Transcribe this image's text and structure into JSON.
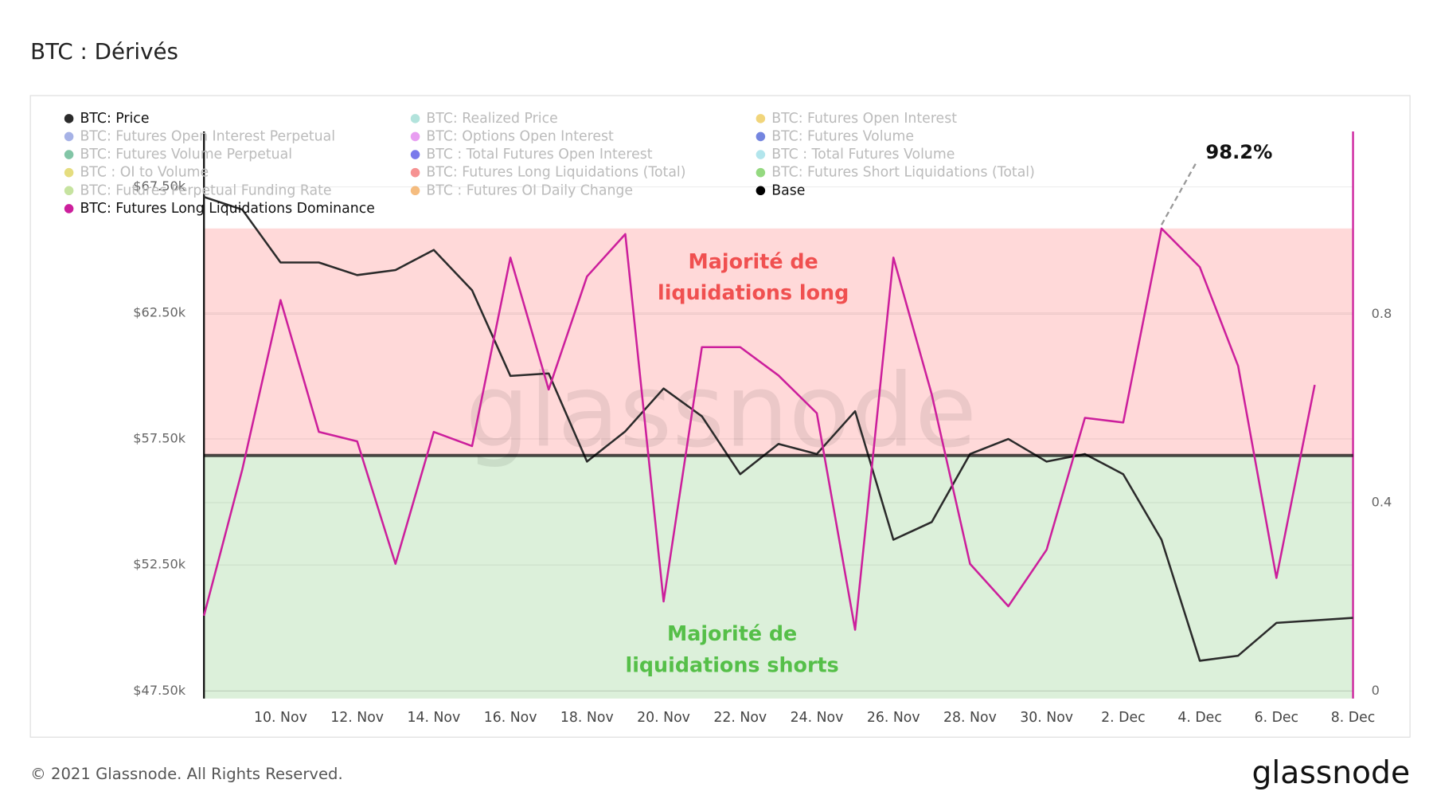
{
  "chart_data": {
    "type": "line",
    "title": "BTC : Dérivés",
    "watermark": "glassnode",
    "x": [
      "8. Nov",
      "9. Nov",
      "10. Nov",
      "11. Nov",
      "12. Nov",
      "13. Nov",
      "14. Nov",
      "15. Nov",
      "16. Nov",
      "17. Nov",
      "18. Nov",
      "19. Nov",
      "20. Nov",
      "21. Nov",
      "22. Nov",
      "23. Nov",
      "24. Nov",
      "25. Nov",
      "26. Nov",
      "27. Nov",
      "28. Nov",
      "29. Nov",
      "30. Nov",
      "1. Dec",
      "2. Dec",
      "3. Dec",
      "4. Dec",
      "5. Dec",
      "6. Dec",
      "7. Dec",
      "8. Dec"
    ],
    "xlim": [
      "8. Nov",
      "8. Dec"
    ],
    "xticks": [
      "10. Nov",
      "12. Nov",
      "14. Nov",
      "16. Nov",
      "18. Nov",
      "20. Nov",
      "22. Nov",
      "24. Nov",
      "26. Nov",
      "28. Nov",
      "30. Nov",
      "2. Dec",
      "4. Dec",
      "6. Dec",
      "8. Dec"
    ],
    "ylim": [
      47200,
      69700
    ],
    "yticks": [
      {
        "value": 47500,
        "label": "$47.50k"
      },
      {
        "value": 52500,
        "label": "$52.50k"
      },
      {
        "value": 57500,
        "label": "$57.50k"
      },
      {
        "value": 62500,
        "label": "$62.50k"
      },
      {
        "value": 67500,
        "label": "$67.50k"
      }
    ],
    "y2lim": [
      -0.016,
      1.188
    ],
    "y2ticks": [
      0,
      0.4,
      0.8
    ],
    "grid": true,
    "series": [
      {
        "name": "BTC: Price",
        "color": "#2b2b2b",
        "visible": true,
        "values": [
          67100,
          66600,
          64500,
          64500,
          64000,
          64200,
          65000,
          63400,
          60000,
          60100,
          56600,
          57800,
          59500,
          58400,
          56100,
          57300,
          56900,
          58600,
          53500,
          54200,
          56900,
          57500,
          56600,
          56900,
          56100,
          53500,
          48700,
          48900,
          50200,
          50300,
          50400
        ]
      },
      {
        "name": "BTC: Realized Price",
        "color": "#7fd1c5",
        "visible": false
      },
      {
        "name": "BTC: Futures Open Interest",
        "color": "#e8b923",
        "visible": false
      },
      {
        "name": "BTC: Futures Open Interest Perpetual",
        "color": "#6b7fd6",
        "visible": false
      },
      {
        "name": "BTC: Options Open Interest",
        "color": "#d95ee8",
        "visible": false
      },
      {
        "name": "BTC: Futures Volume",
        "color": "#1733c9",
        "visible": false
      },
      {
        "name": "BTC: Futures Volume Perpetual",
        "color": "#2e9e6a",
        "visible": false
      },
      {
        "name": "BTC : Total Futures Open Interest",
        "color": "#2222dd",
        "visible": false
      },
      {
        "name": "BTC : Total Futures Volume",
        "color": "#7fd3e0",
        "visible": false
      },
      {
        "name": "BTC : OI to Volume",
        "color": "#d4c72a",
        "visible": false
      },
      {
        "name": "BTC: Futures Long Liquidations (Total)",
        "color": "#f04a4a",
        "visible": false
      },
      {
        "name": "BTC: Futures Short Liquidations (Total)",
        "color": "#4cbf2c",
        "visible": false
      },
      {
        "name": "BTC: Futures Perpetual Funding Rate",
        "color": "#a0d060",
        "visible": false
      },
      {
        "name": "BTC : Futures OI Daily Change",
        "color": "#ee8f2a",
        "visible": false
      },
      {
        "name": "Base",
        "color": "#000000",
        "visible": true,
        "axis": "y2",
        "level": 0.5
      },
      {
        "name": "BTC: Futures Long Liquidations Dominance",
        "color": "#cc1f9c",
        "visible": true,
        "axis": "y2",
        "values": [
          0.16,
          0.47,
          0.83,
          0.55,
          0.53,
          0.27,
          0.55,
          0.52,
          0.92,
          0.64,
          0.88,
          0.97,
          0.19,
          0.73,
          0.73,
          0.67,
          0.59,
          0.13,
          0.92,
          0.63,
          0.27,
          0.18,
          0.3,
          0.58,
          0.57,
          0.982,
          0.9,
          0.69,
          0.24,
          0.65,
          null
        ]
      }
    ],
    "regions": [
      {
        "lines": [
          "Majorité de",
          "liquidations long"
        ],
        "range": [
          0.5,
          0.982
        ],
        "fill": "#ffd9d9",
        "color": "#f05050"
      },
      {
        "lines": [
          "Majorité de",
          "liquidations shorts"
        ],
        "range": [
          -0.016,
          0.5
        ],
        "fill": "#dcf0da",
        "color": "#55bf48"
      }
    ],
    "annotations": [
      {
        "text": "98.2%"
      }
    ]
  },
  "footer": "© 2021 Glassnode. All Rights Reserved.",
  "logo": "glassnode"
}
